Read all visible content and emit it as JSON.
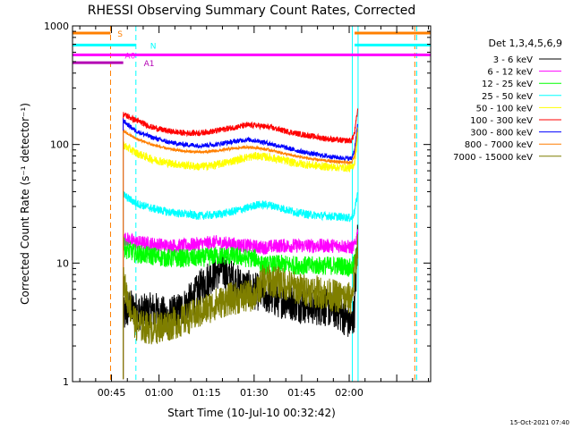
{
  "chart_data": {
    "type": "line",
    "title": "RHESSI Observing Summary Count Rates, Corrected",
    "xlabel": "Start Time (10-Jul-10 00:32:42)",
    "ylabel": "Corrected Count Rate (s⁻¹ detector⁻¹)",
    "yscale": "log",
    "ylim": [
      1,
      1000
    ],
    "xlim_minutes": [
      0.0,
      113.0
    ],
    "x_tick_labels": [
      "00:45",
      "01:00",
      "01:15",
      "01:30",
      "01:45",
      "02:00"
    ],
    "x_tick_minutes": [
      12.3,
      27.3,
      42.3,
      57.3,
      72.3,
      87.3
    ],
    "y_tick_labels": [
      "1",
      "10",
      "100",
      "1000"
    ],
    "y_tick_values": [
      1,
      10,
      100,
      1000
    ],
    "footer": "15-Oct-2021 07:40",
    "legend": {
      "header": "Det 1,3,4,5,6,9",
      "position": "right"
    },
    "flags": [
      {
        "label": "S",
        "color": "#ff7f00",
        "segments": [
          [
            0,
            12
          ],
          [
            89,
            113
          ]
        ],
        "level": 870
      },
      {
        "label": "N",
        "color": "#00ffff",
        "segments": [
          [
            0,
            20
          ],
          [
            89,
            113
          ]
        ],
        "level": 690
      },
      {
        "label": "A0",
        "color": "#ff00ff",
        "segments": [
          [
            0,
            113
          ]
        ],
        "level": 570
      },
      {
        "label": "A1",
        "color": "#b400b4",
        "segments": [
          [
            0,
            16
          ]
        ],
        "level": 490
      }
    ],
    "vlines": [
      {
        "x": 12.0,
        "color": "#ff7f00",
        "style": "dash"
      },
      {
        "x": 20.0,
        "color": "#00ffff",
        "style": "dash"
      },
      {
        "x": 88.3,
        "color": "#00ffff",
        "style": "solid"
      },
      {
        "x": 90.1,
        "color": "#00ffff",
        "style": "solid"
      },
      {
        "x": 108.0,
        "color": "#ff7f00",
        "style": "dash"
      },
      {
        "x": 108.6,
        "color": "#00ffff",
        "style": "dash"
      }
    ],
    "series": [
      {
        "name": "3 - 6 keV",
        "color": "#000000",
        "x": [
          16,
          18,
          22,
          26,
          30,
          34,
          38,
          41,
          44,
          47,
          50,
          53,
          56,
          60,
          64,
          68,
          72,
          76,
          80,
          83,
          86,
          88,
          89,
          90
        ],
        "y": [
          3.5,
          4.2,
          3.8,
          4.0,
          3.5,
          4.0,
          5.0,
          6.5,
          8.0,
          9.0,
          7.5,
          6.5,
          6.0,
          5.5,
          5.0,
          4.8,
          4.5,
          4.3,
          4.2,
          4.0,
          3.5,
          3.0,
          4.0,
          18
        ],
        "noise": 0.16
      },
      {
        "name": "6 - 12 keV",
        "color": "#ff00ff",
        "x": [
          16,
          17,
          20,
          25,
          30,
          35,
          40,
          45,
          50,
          55,
          60,
          65,
          70,
          75,
          80,
          85,
          88,
          89,
          90
        ],
        "y": [
          16,
          16,
          15,
          14.5,
          14,
          14,
          14.5,
          15,
          14.5,
          14,
          13.5,
          14,
          14,
          14,
          14,
          14,
          13.5,
          14,
          18
        ],
        "noise": 0.06
      },
      {
        "name": "12 - 25 keV",
        "color": "#00ff00",
        "x": [
          16,
          17,
          20,
          25,
          30,
          35,
          40,
          45,
          50,
          55,
          58,
          60,
          65,
          70,
          75,
          80,
          85,
          88,
          89,
          90
        ],
        "y": [
          14,
          13,
          12,
          11.5,
          11,
          11,
          11,
          11.5,
          11.5,
          11,
          11,
          9.5,
          9.8,
          9.6,
          9.5,
          9.5,
          9.5,
          9.0,
          10,
          14
        ],
        "noise": 0.08
      },
      {
        "name": "25 - 50 keV",
        "color": "#00ffff",
        "x": [
          16,
          17,
          20,
          25,
          30,
          35,
          40,
          45,
          50,
          55,
          58,
          62,
          66,
          70,
          75,
          80,
          85,
          88,
          89,
          90
        ],
        "y": [
          38,
          36,
          32,
          29,
          27,
          26,
          25,
          25.5,
          27,
          29,
          31,
          31,
          29,
          27,
          25.5,
          25,
          24.5,
          24,
          27,
          40
        ],
        "noise": 0.035
      },
      {
        "name": "50 - 100 keV",
        "color": "#ffff00",
        "x": [
          16,
          17,
          20,
          25,
          30,
          35,
          40,
          45,
          50,
          55,
          58,
          62,
          66,
          70,
          75,
          80,
          85,
          88,
          89,
          90
        ],
        "y": [
          100,
          95,
          85,
          75,
          70,
          67,
          65,
          67,
          72,
          78,
          80,
          78,
          74,
          70,
          67,
          65,
          64,
          63,
          70,
          120
        ],
        "noise": 0.035
      },
      {
        "name": "100 - 300 keV",
        "color": "#ff0000",
        "x": [
          16,
          17,
          20,
          25,
          30,
          35,
          40,
          45,
          50,
          55,
          58,
          62,
          66,
          70,
          75,
          80,
          85,
          88,
          89,
          90
        ],
        "y": [
          180,
          175,
          160,
          140,
          130,
          125,
          125,
          130,
          138,
          145,
          145,
          140,
          132,
          125,
          118,
          112,
          108,
          108,
          125,
          200
        ],
        "noise": 0.025
      },
      {
        "name": "300 - 800 keV",
        "color": "#0000ff",
        "x": [
          16,
          17,
          20,
          25,
          30,
          35,
          40,
          45,
          50,
          55,
          58,
          62,
          66,
          70,
          75,
          80,
          85,
          88,
          89,
          90
        ],
        "y": [
          160,
          150,
          130,
          115,
          105,
          100,
          98,
          100,
          105,
          110,
          108,
          102,
          96,
          90,
          84,
          80,
          77,
          76,
          90,
          150
        ],
        "noise": 0.02
      },
      {
        "name": "800 - 7000 keV",
        "color": "#ff7f00",
        "x": [
          16,
          17,
          20,
          25,
          30,
          35,
          40,
          45,
          50,
          55,
          58,
          62,
          66,
          70,
          75,
          80,
          85,
          88,
          89,
          90
        ],
        "y": [
          130,
          125,
          112,
          100,
          92,
          88,
          86,
          88,
          92,
          95,
          94,
          90,
          85,
          80,
          76,
          73,
          71,
          70,
          80,
          140
        ],
        "noise": 0.012
      },
      {
        "name": "7000 - 15000 keV",
        "color": "#7f7f00",
        "x": [
          16,
          17,
          20,
          25,
          30,
          35,
          40,
          45,
          50,
          55,
          58,
          60,
          64,
          68,
          72,
          76,
          80,
          84,
          88,
          89,
          90
        ],
        "y": [
          7.0,
          5.5,
          3.0,
          2.8,
          3.0,
          3.3,
          3.8,
          4.5,
          5.0,
          5.2,
          5.5,
          7.0,
          7.0,
          6.5,
          6.0,
          5.8,
          5.5,
          5.2,
          5.0,
          8.0,
          14
        ],
        "noise": 0.14
      }
    ]
  }
}
